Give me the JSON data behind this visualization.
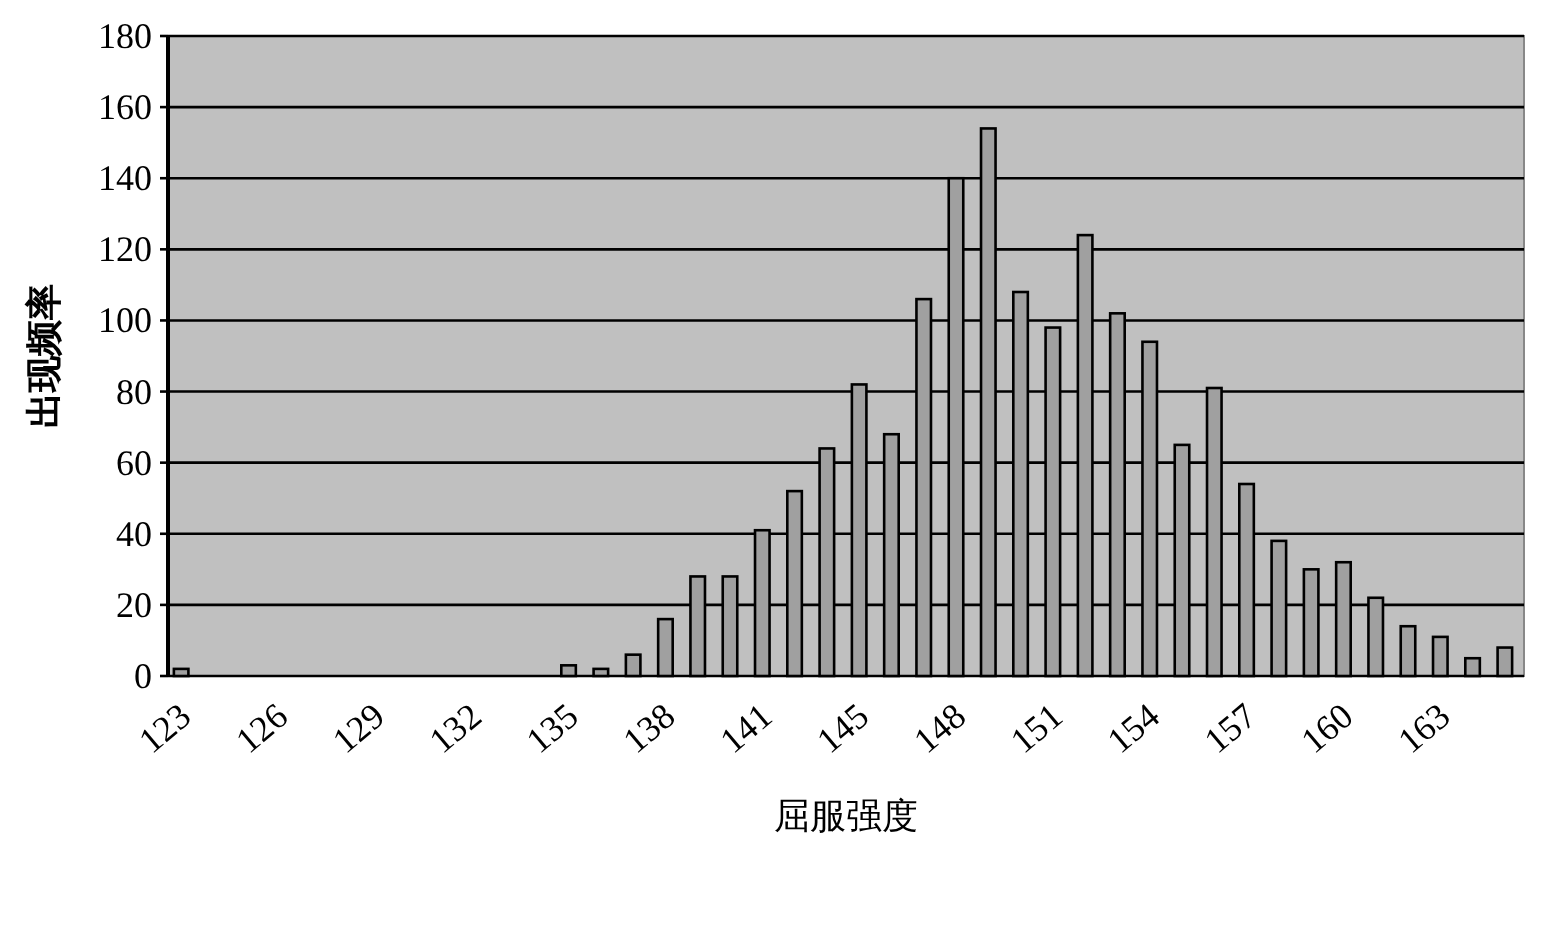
{
  "chart_data": {
    "type": "bar",
    "xlabel": "屈服强度",
    "ylabel": "出现频率",
    "categories": [
      "123",
      null,
      null,
      "126",
      null,
      null,
      "129",
      null,
      null,
      "132",
      null,
      null,
      "135",
      null,
      null,
      "138",
      null,
      null,
      "141",
      null,
      null,
      "145",
      null,
      null,
      "148",
      null,
      null,
      "151",
      null,
      null,
      "154",
      null,
      null,
      "157",
      null,
      null,
      "160",
      null,
      null,
      "163",
      null,
      null
    ],
    "values": [
      2,
      0,
      0,
      0,
      0,
      0,
      0,
      0,
      0,
      0,
      0,
      0,
      3,
      2,
      6,
      16,
      28,
      28,
      41,
      52,
      64,
      82,
      68,
      106,
      140,
      154,
      108,
      98,
      124,
      102,
      94,
      65,
      81,
      54,
      38,
      30,
      32,
      22,
      14,
      11,
      5,
      8
    ],
    "color": "#a0a0a0",
    "ylim": [
      0,
      180
    ],
    "yticks": [
      0,
      20,
      40,
      60,
      80,
      100,
      120,
      140,
      160,
      180
    ],
    "grid": "y"
  }
}
